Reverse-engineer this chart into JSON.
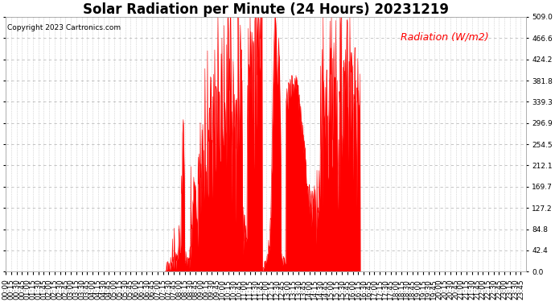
{
  "title": "Solar Radiation per Minute (24 Hours) 20231219",
  "ylabel": "Radiation (W/m2)",
  "copyright_text": "Copyright 2023 Cartronics.com",
  "background_color": "#ffffff",
  "fill_color": "#ff0000",
  "line_color": "#ff0000",
  "ylabel_color": "#ff0000",
  "dashed_line_color": "#ff0000",
  "grid_color": "#bbbbbb",
  "ylim": [
    0.0,
    509.0
  ],
  "yticks": [
    0.0,
    42.4,
    84.8,
    127.2,
    169.7,
    212.1,
    254.5,
    296.9,
    339.3,
    381.8,
    424.2,
    466.6,
    509.0
  ],
  "total_minutes": 1440,
  "title_fontsize": 12,
  "tick_fontsize": 6.5,
  "ylabel_fontsize": 9,
  "copyright_fontsize": 6.5
}
